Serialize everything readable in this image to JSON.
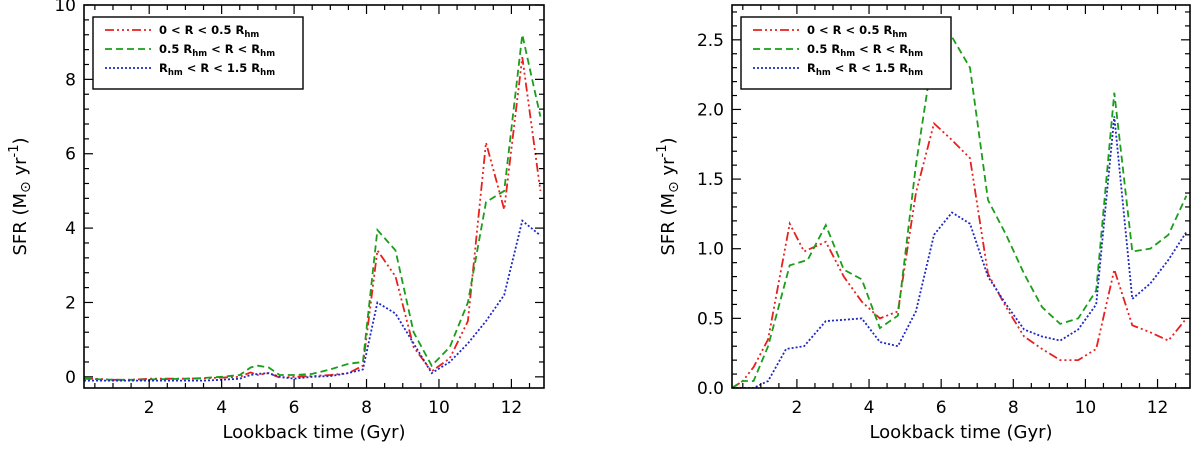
{
  "chart_data": [
    {
      "type": "line",
      "panel": "left",
      "xlabel": "Lookback time (Gyr)",
      "ylabel_main": "SFR (M",
      "ylabel_sun": "⊙",
      "ylabel_unit": " yr",
      "ylabel_exp": "-1",
      "ylabel_close": ")",
      "xlim": [
        0.2,
        12.9
      ],
      "ylim": [
        -0.3,
        10.0
      ],
      "xticks": [
        2,
        4,
        6,
        8,
        10,
        12
      ],
      "yticks": [
        0,
        2,
        4,
        6,
        8,
        10
      ],
      "yticklabels": [
        "0",
        "2",
        "4",
        "6",
        "8",
        "10"
      ],
      "legend_position": "top-left",
      "series": [
        {
          "legend_main": "0 < R < 0.5 R",
          "legend_sub": "hm",
          "legend_tail": "",
          "color": "#e8201e",
          "dash": "9,3,2,3,2,3,2,3",
          "x": [
            0.2,
            0.5,
            1.0,
            1.5,
            2.0,
            2.5,
            3.0,
            3.5,
            4.0,
            4.5,
            4.8,
            5.0,
            5.3,
            5.6,
            6.0,
            6.5,
            7.0,
            7.5,
            7.9,
            8.3,
            8.8,
            9.3,
            9.8,
            10.3,
            10.8,
            11.3,
            11.8,
            12.3,
            12.8
          ],
          "y": [
            -0.05,
            -0.05,
            -0.08,
            -0.08,
            -0.05,
            -0.05,
            -0.05,
            -0.04,
            -0.02,
            0.0,
            0.12,
            0.05,
            0.1,
            -0.02,
            0.0,
            0.02,
            0.05,
            0.1,
            0.3,
            3.4,
            2.7,
            0.8,
            0.15,
            0.5,
            1.5,
            6.3,
            4.5,
            8.6,
            5.0
          ]
        },
        {
          "legend_main": "0.5 R",
          "legend_sub": "hm",
          "legend_tail": " < R < R",
          "legend_sub2": "hm",
          "color": "#1a9e1a",
          "dash": "7,4",
          "x": [
            0.2,
            0.5,
            1.0,
            1.5,
            2.0,
            2.5,
            3.0,
            3.5,
            4.0,
            4.5,
            4.8,
            5.0,
            5.3,
            5.6,
            6.0,
            6.5,
            7.0,
            7.5,
            7.9,
            8.3,
            8.8,
            9.3,
            9.8,
            10.3,
            10.8,
            11.3,
            11.8,
            12.3,
            12.8
          ],
          "y": [
            -0.05,
            -0.06,
            -0.08,
            -0.08,
            -0.07,
            -0.06,
            -0.05,
            -0.03,
            0.0,
            0.05,
            0.25,
            0.3,
            0.25,
            0.05,
            0.05,
            0.08,
            0.2,
            0.35,
            0.4,
            3.95,
            3.4,
            1.2,
            0.3,
            0.8,
            2.0,
            4.7,
            5.0,
            9.2,
            7.0
          ]
        },
        {
          "legend_main": "R",
          "legend_sub": "hm",
          "legend_tail": " < R < 1.5 R",
          "legend_sub2": "hm",
          "color": "#1f28c4",
          "dash": "2,2",
          "x": [
            0.2,
            0.5,
            1.0,
            1.5,
            2.0,
            2.5,
            3.0,
            3.5,
            4.0,
            4.5,
            4.8,
            5.0,
            5.3,
            5.6,
            6.0,
            6.5,
            7.0,
            7.5,
            7.9,
            8.3,
            8.8,
            9.3,
            9.8,
            10.3,
            10.8,
            11.3,
            11.8,
            12.3,
            12.8
          ],
          "y": [
            -0.1,
            -0.1,
            -0.1,
            -0.1,
            -0.1,
            -0.1,
            -0.1,
            -0.1,
            -0.08,
            -0.05,
            0.05,
            0.08,
            0.1,
            0.0,
            -0.05,
            0.0,
            0.02,
            0.1,
            0.2,
            2.0,
            1.7,
            0.9,
            0.1,
            0.4,
            0.9,
            1.5,
            2.2,
            4.2,
            3.8
          ]
        }
      ]
    },
    {
      "type": "line",
      "panel": "right",
      "xlabel": "Lookback time (Gyr)",
      "ylabel_main": "SFR (M",
      "ylabel_sun": "⊙",
      "ylabel_unit": " yr",
      "ylabel_exp": "-1",
      "ylabel_close": ")",
      "xlim": [
        0.2,
        12.9
      ],
      "ylim": [
        0.0,
        2.75
      ],
      "xticks": [
        2,
        4,
        6,
        8,
        10,
        12
      ],
      "yticks": [
        0.0,
        0.5,
        1.0,
        1.5,
        2.0,
        2.5
      ],
      "yticklabels": [
        "0.0",
        "0.5",
        "1.0",
        "1.5",
        "2.0",
        "2.5"
      ],
      "legend_position": "top-left",
      "series": [
        {
          "legend_main": "0 < R < 0.5 R",
          "legend_sub": "hm",
          "legend_tail": "",
          "color": "#e8201e",
          "dash": "9,3,2,3,2,3,2,3",
          "x": [
            0.2,
            0.5,
            0.8,
            1.2,
            1.8,
            2.2,
            2.8,
            3.3,
            3.8,
            4.3,
            4.8,
            5.3,
            5.8,
            6.3,
            6.8,
            7.3,
            7.8,
            8.3,
            8.8,
            9.3,
            9.8,
            10.3,
            10.8,
            11.3,
            11.8,
            12.3,
            12.8
          ],
          "y": [
            0.0,
            0.05,
            0.15,
            0.35,
            1.18,
            0.98,
            1.05,
            0.8,
            0.62,
            0.5,
            0.55,
            1.4,
            1.9,
            1.78,
            1.65,
            0.82,
            0.58,
            0.37,
            0.28,
            0.2,
            0.2,
            0.28,
            0.85,
            0.45,
            0.4,
            0.34,
            0.5
          ]
        },
        {
          "legend_main": "0.5 R",
          "legend_sub": "hm",
          "legend_tail": " < R < R",
          "legend_sub2": "hm",
          "color": "#1a9e1a",
          "dash": "7,4",
          "x": [
            0.2,
            0.5,
            0.8,
            1.2,
            1.8,
            2.3,
            2.8,
            3.3,
            3.8,
            4.3,
            4.8,
            5.3,
            5.8,
            6.3,
            6.8,
            7.3,
            7.8,
            8.3,
            8.8,
            9.3,
            9.8,
            10.3,
            10.8,
            11.3,
            11.8,
            12.3,
            12.8
          ],
          "y": [
            0.0,
            0.05,
            0.05,
            0.3,
            0.88,
            0.92,
            1.17,
            0.85,
            0.78,
            0.43,
            0.52,
            1.6,
            2.45,
            2.52,
            2.3,
            1.35,
            1.1,
            0.82,
            0.58,
            0.46,
            0.5,
            0.7,
            2.12,
            0.98,
            1.0,
            1.1,
            1.38
          ]
        },
        {
          "legend_main": "R",
          "legend_sub": "hm",
          "legend_tail": " < R < 1.5 R",
          "legend_sub2": "hm",
          "color": "#1f28c4",
          "dash": "2,2",
          "x": [
            0.2,
            0.5,
            0.8,
            1.2,
            1.7,
            2.2,
            2.8,
            3.3,
            3.8,
            4.3,
            4.8,
            5.3,
            5.8,
            6.3,
            6.8,
            7.3,
            7.8,
            8.3,
            8.8,
            9.3,
            9.8,
            10.3,
            10.8,
            11.3,
            11.8,
            12.3,
            12.8
          ],
          "y": [
            0.0,
            0.0,
            0.0,
            0.05,
            0.28,
            0.3,
            0.48,
            0.49,
            0.5,
            0.33,
            0.3,
            0.55,
            1.1,
            1.26,
            1.18,
            0.8,
            0.6,
            0.42,
            0.37,
            0.34,
            0.42,
            0.6,
            1.95,
            0.64,
            0.75,
            0.92,
            1.12
          ]
        }
      ]
    }
  ]
}
